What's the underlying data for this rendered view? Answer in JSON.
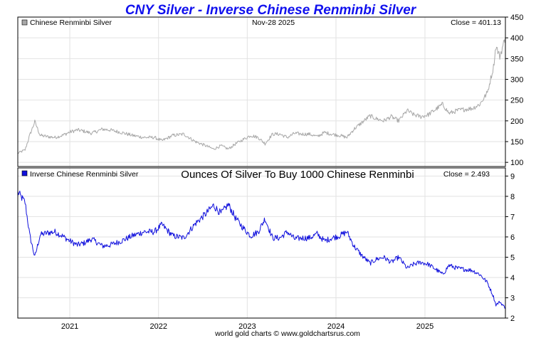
{
  "title": "CNY Silver - Inverse Chinese Renminbi Silver",
  "footer": "world gold charts © www.goldchartsrus.com",
  "chart_data": [
    {
      "type": "line",
      "legend": "Chinese Renminbi Silver",
      "date_label": "Nov-28  2025",
      "close_label": "Close = 401.13",
      "color": "#a8a8a8",
      "x_tick_labels": [
        "2021",
        "2022",
        "2023",
        "2024",
        "2025"
      ],
      "yticks": [
        100,
        150,
        200,
        250,
        300,
        350,
        400,
        450
      ],
      "ylim": [
        90,
        450
      ],
      "xlim": [
        "2020-06-01",
        "2025-11-28"
      ],
      "series": [
        {
          "name": "Chinese Renminbi Silver",
          "x": [
            "2020-06-01",
            "2020-07-01",
            "2020-07-20",
            "2020-08-10",
            "2020-09-01",
            "2020-10-01",
            "2020-11-01",
            "2020-12-01",
            "2021-01-01",
            "2021-02-01",
            "2021-03-01",
            "2021-04-01",
            "2021-05-15",
            "2021-06-15",
            "2021-08-01",
            "2021-09-15",
            "2021-11-01",
            "2021-12-15",
            "2022-01-15",
            "2022-03-01",
            "2022-04-15",
            "2022-06-01",
            "2022-07-15",
            "2022-08-15",
            "2022-09-15",
            "2022-10-15",
            "2022-11-15",
            "2022-12-15",
            "2023-01-15",
            "2023-02-15",
            "2023-03-15",
            "2023-04-15",
            "2023-05-15",
            "2023-06-15",
            "2023-07-15",
            "2023-08-15",
            "2023-09-15",
            "2023-10-15",
            "2023-11-15",
            "2023-12-15",
            "2024-01-15",
            "2024-02-15",
            "2024-03-15",
            "2024-04-15",
            "2024-05-20",
            "2024-06-15",
            "2024-07-15",
            "2024-08-15",
            "2024-09-15",
            "2024-10-20",
            "2024-11-15",
            "2024-12-15",
            "2025-01-15",
            "2025-02-15",
            "2025-03-15",
            "2025-04-10",
            "2025-05-15",
            "2025-06-15",
            "2025-07-15",
            "2025-08-15",
            "2025-09-15",
            "2025-10-10",
            "2025-10-20",
            "2025-11-05",
            "2025-11-28"
          ],
          "values": [
            122,
            130,
            165,
            198,
            165,
            162,
            160,
            165,
            173,
            178,
            175,
            170,
            180,
            178,
            172,
            165,
            160,
            160,
            152,
            165,
            168,
            150,
            140,
            132,
            140,
            132,
            145,
            155,
            165,
            160,
            145,
            168,
            168,
            160,
            170,
            168,
            168,
            162,
            172,
            168,
            165,
            160,
            180,
            195,
            212,
            205,
            200,
            210,
            200,
            225,
            215,
            210,
            215,
            228,
            240,
            218,
            225,
            228,
            230,
            240,
            268,
            330,
            380,
            355,
            401.13
          ]
        }
      ]
    },
    {
      "type": "line",
      "legend": "Inverse Chinese Renminbi Silver",
      "subtitle": "Ounces Of Silver To Buy 1000 Chinese Renminbi",
      "close_label": "Close = 2.493",
      "color": "#1010dd",
      "x_tick_labels": [
        "2021",
        "2022",
        "2023",
        "2024",
        "2025"
      ],
      "yticks": [
        2,
        3,
        4,
        5,
        6,
        7,
        8,
        9
      ],
      "ylim": [
        2,
        9.4
      ],
      "xlim": [
        "2020-06-01",
        "2025-11-28"
      ],
      "series": [
        {
          "name": "Inverse Chinese Renminbi Silver",
          "x": [
            "2020-06-01",
            "2020-07-01",
            "2020-07-20",
            "2020-08-10",
            "2020-09-01",
            "2020-10-01",
            "2020-11-01",
            "2020-12-01",
            "2021-01-01",
            "2021-02-01",
            "2021-03-01",
            "2021-04-01",
            "2021-05-15",
            "2021-06-15",
            "2021-08-01",
            "2021-09-15",
            "2021-11-01",
            "2021-12-15",
            "2022-01-15",
            "2022-03-01",
            "2022-04-15",
            "2022-06-01",
            "2022-07-15",
            "2022-08-15",
            "2022-09-15",
            "2022-10-15",
            "2022-11-15",
            "2022-12-15",
            "2023-01-15",
            "2023-02-15",
            "2023-03-15",
            "2023-04-15",
            "2023-05-15",
            "2023-06-15",
            "2023-07-15",
            "2023-08-15",
            "2023-09-15",
            "2023-10-15",
            "2023-11-15",
            "2023-12-15",
            "2024-01-15",
            "2024-02-15",
            "2024-03-15",
            "2024-04-15",
            "2024-05-20",
            "2024-06-15",
            "2024-07-15",
            "2024-08-15",
            "2024-09-15",
            "2024-10-20",
            "2024-11-15",
            "2024-12-15",
            "2025-01-15",
            "2025-02-15",
            "2025-03-15",
            "2025-04-10",
            "2025-05-15",
            "2025-06-15",
            "2025-07-15",
            "2025-08-15",
            "2025-09-15",
            "2025-10-10",
            "2025-10-20",
            "2025-11-05",
            "2025-11-28"
          ],
          "values": [
            8.2,
            7.7,
            6.1,
            5.0,
            6.1,
            6.2,
            6.25,
            6.05,
            5.8,
            5.6,
            5.7,
            5.9,
            5.55,
            5.6,
            5.8,
            6.05,
            6.25,
            6.25,
            6.6,
            6.05,
            5.95,
            6.65,
            7.15,
            7.55,
            7.15,
            7.6,
            6.9,
            6.45,
            6.05,
            6.25,
            6.9,
            5.95,
            5.95,
            6.25,
            5.9,
            5.95,
            5.95,
            6.15,
            5.8,
            5.95,
            6.05,
            6.25,
            5.55,
            5.1,
            4.7,
            4.9,
            5.0,
            4.75,
            5.0,
            4.45,
            4.65,
            4.75,
            4.65,
            4.4,
            4.15,
            4.6,
            4.45,
            4.4,
            4.35,
            4.15,
            3.75,
            3.05,
            2.65,
            2.8,
            2.493
          ]
        }
      ]
    }
  ]
}
